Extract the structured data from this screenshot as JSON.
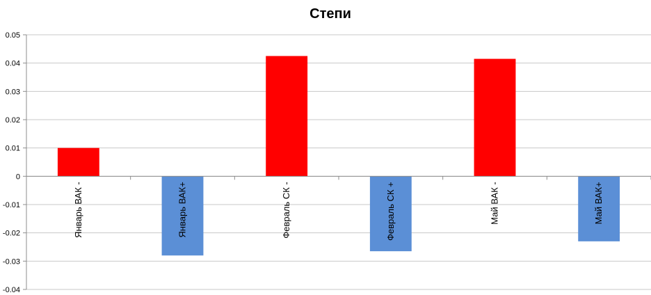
{
  "chart_data": {
    "type": "bar",
    "title": "Степи",
    "xlabel": "",
    "ylabel": "",
    "ylim": [
      -0.04,
      0.05
    ],
    "yticks": [
      0.05,
      0.04,
      0.03,
      0.02,
      0.01,
      0,
      -0.01,
      -0.02,
      -0.03,
      -0.04
    ],
    "grid": true,
    "categories": [
      "Январь ВАК -",
      "Январь ВАК+",
      "Февраль СК  -",
      "Февраль СК  +",
      "Май ВАК -",
      "Май ВАК+"
    ],
    "values": [
      0.01,
      -0.028,
      0.0425,
      -0.0265,
      0.0415,
      -0.023
    ],
    "colors": [
      "#ff0000",
      "#5b8fd6",
      "#ff0000",
      "#5b8fd6",
      "#ff0000",
      "#5b8fd6"
    ]
  }
}
